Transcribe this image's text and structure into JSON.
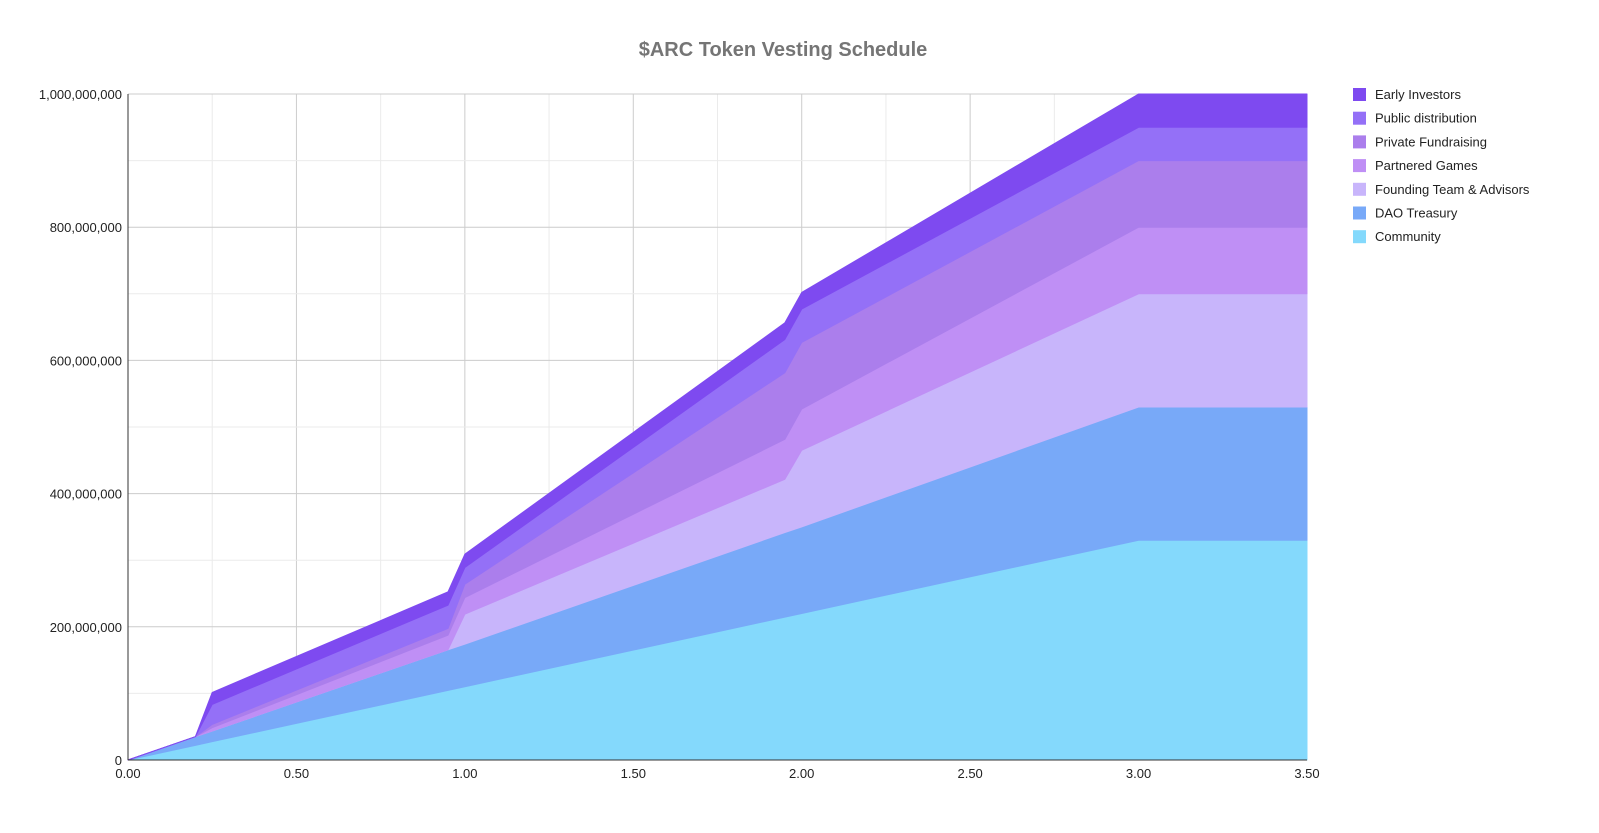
{
  "chart_data": {
    "type": "area",
    "stacked": true,
    "title": "$ARC Token Vesting Schedule",
    "xlabel": "",
    "ylabel": "",
    "xlim": [
      0,
      3.5
    ],
    "ylim": [
      0,
      1000000000
    ],
    "x_ticks": [
      "0.00",
      "0.50",
      "1.00",
      "1.50",
      "2.00",
      "2.50",
      "3.00",
      "3.50"
    ],
    "y_ticks": [
      "0",
      "200,000,000",
      "400,000,000",
      "600,000,000",
      "800,000,000",
      "1,000,000,000"
    ],
    "grid": true,
    "legend_position": "right",
    "x": [
      0,
      0.2,
      0.25,
      0.95,
      1.0,
      1.95,
      2.0,
      3.0,
      3.25,
      3.5
    ],
    "series": [
      {
        "name": "Community",
        "color": "#84d9fc",
        "values": [
          0,
          22000000,
          27500000,
          104500000,
          110000000,
          214500000,
          220000000,
          330000000,
          330000000,
          330000000
        ]
      },
      {
        "name": "DAO Treasury",
        "color": "#78a9f8",
        "values": [
          0,
          13000000,
          16000000,
          61000000,
          64000000,
          127000000,
          130000000,
          200000000,
          200000000,
          200000000
        ]
      },
      {
        "name": "Founding Team & Advisors",
        "color": "#c8b5fb",
        "values": [
          0,
          0,
          0,
          0,
          45000000,
          80000000,
          115000000,
          170000000,
          170000000,
          170000000
        ]
      },
      {
        "name": "Partnered Games",
        "color": "#bf8ff5",
        "values": [
          0,
          0,
          5000000,
          22000000,
          25000000,
          60000000,
          62000000,
          100000000,
          100000000,
          100000000
        ]
      },
      {
        "name": "Private Fundraising",
        "color": "#ab7eec",
        "values": [
          0,
          0,
          5000000,
          10000000,
          20000000,
          100000000,
          100000000,
          100000000,
          100000000,
          100000000
        ]
      },
      {
        "name": "Public distribution",
        "color": "#9470f7",
        "values": [
          0,
          0,
          30000000,
          35000000,
          25000000,
          50000000,
          50000000,
          50000000,
          50000000,
          50000000
        ]
      },
      {
        "name": "Early Investors",
        "color": "#7e4af0",
        "values": [
          0,
          0,
          18000000,
          20000000,
          20000000,
          25000000,
          25000000,
          50000000,
          50000000,
          50000000
        ]
      }
    ],
    "legend_order": [
      "Early Investors",
      "Public distribution",
      "Private Fundraising",
      "Partnered Games",
      "Founding Team & Advisors",
      "DAO Treasury",
      "Community"
    ]
  }
}
